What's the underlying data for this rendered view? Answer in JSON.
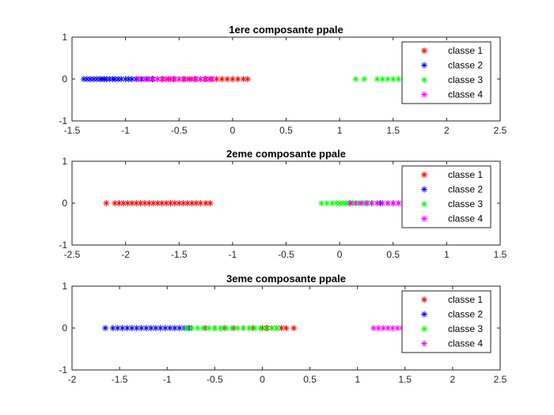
{
  "chart_data": [
    {
      "type": "scatter",
      "title": "1ere composante ppale",
      "xlim": [
        -1.5,
        2.5
      ],
      "ylim": [
        -1,
        1
      ],
      "xticks": [
        "-1.5",
        "-1",
        "-0.5",
        "0",
        "0.5",
        "1",
        "1.5",
        "2",
        "2.5"
      ],
      "yticks": [
        "1",
        "0",
        "-1"
      ],
      "legend_position": "top-right",
      "series": [
        {
          "name": "classe 1",
          "color": "#ff0000",
          "marker": "asterisk",
          "x": [
            -0.9,
            -0.85,
            -0.8,
            -0.75,
            -0.7,
            -0.65,
            -0.6,
            -0.55,
            -0.5,
            -0.45,
            -0.4,
            -0.35,
            -0.3,
            -0.25,
            -0.2,
            -0.15,
            -0.1,
            -0.05,
            0.0,
            0.05,
            0.1,
            0.14
          ]
        },
        {
          "name": "classe 2",
          "color": "#0000ff",
          "marker": "asterisk",
          "x": [
            -1.39,
            -1.36,
            -1.33,
            -1.3,
            -1.27,
            -1.24,
            -1.22,
            -1.2,
            -1.18,
            -1.15,
            -1.12,
            -1.1,
            -1.07,
            -1.04,
            -1.0,
            -0.97,
            -0.94,
            -0.9,
            -0.85,
            -0.8,
            -0.75
          ]
        },
        {
          "name": "classe 3",
          "color": "#00ff00",
          "marker": "asterisk",
          "x": [
            1.15,
            1.23,
            1.35,
            1.4,
            1.45,
            1.5,
            1.55,
            1.6,
            1.65,
            1.7,
            1.75,
            1.8,
            1.85,
            1.9,
            1.95,
            2.0,
            2.05
          ]
        },
        {
          "name": "classe 4",
          "color": "#ff00ff",
          "marker": "asterisk",
          "x": [
            -0.88,
            -0.82,
            -0.78,
            -0.74,
            -0.7,
            -0.66,
            -0.62,
            -0.58,
            -0.54,
            -0.5,
            -0.46,
            -0.42,
            -0.38,
            -0.34,
            -0.3,
            -0.26,
            -0.22,
            -0.19
          ]
        }
      ]
    },
    {
      "type": "scatter",
      "title": "2eme composante ppale",
      "xlim": [
        -2.5,
        1.5
      ],
      "ylim": [
        -1,
        1
      ],
      "xticks": [
        "-2.5",
        "-2",
        "-1.5",
        "-1",
        "-0.5",
        "0",
        "0.5",
        "1",
        "1.5"
      ],
      "yticks": [
        "1",
        "0",
        "-1"
      ],
      "legend_position": "top-right",
      "series": [
        {
          "name": "classe 1",
          "color": "#ff0000",
          "marker": "asterisk",
          "x": [
            -2.18,
            -2.1,
            -2.06,
            -2.02,
            -1.98,
            -1.94,
            -1.9,
            -1.86,
            -1.82,
            -1.78,
            -1.74,
            -1.7,
            -1.66,
            -1.62,
            -1.58,
            -1.54,
            -1.5,
            -1.46,
            -1.42,
            -1.38,
            -1.34,
            -1.3,
            -1.25,
            -1.21
          ]
        },
        {
          "name": "classe 2",
          "color": "#0000ff",
          "marker": "asterisk",
          "x": [
            0.3,
            0.38,
            0.45,
            0.5,
            0.55,
            0.6,
            0.65,
            0.7,
            0.75,
            0.8,
            0.85,
            0.9
          ]
        },
        {
          "name": "classe 3",
          "color": "#00ff00",
          "marker": "asterisk",
          "x": [
            -0.17,
            -0.12,
            -0.07,
            -0.03,
            0.0,
            0.03,
            0.06,
            0.09,
            0.12,
            0.15,
            0.18,
            0.22,
            0.26,
            0.3,
            0.35,
            0.4
          ]
        },
        {
          "name": "classe 4",
          "color": "#ff00ff",
          "marker": "asterisk",
          "x": [
            0.1,
            0.15,
            0.2,
            0.25,
            0.3,
            0.35,
            0.4,
            0.45,
            0.5,
            0.55,
            0.6,
            0.65,
            0.7,
            0.75
          ]
        }
      ]
    },
    {
      "type": "scatter",
      "title": "3eme composante ppale",
      "xlim": [
        -2,
        2.5
      ],
      "ylim": [
        -1,
        1
      ],
      "xticks": [
        "-2",
        "-1.5",
        "-1",
        "-0.5",
        "0",
        "0.5",
        "1",
        "1.5",
        "2",
        "2.5"
      ],
      "yticks": [
        "1",
        "0",
        "-1"
      ],
      "legend_position": "top-right",
      "series": [
        {
          "name": "classe 1",
          "color": "#ff0000",
          "marker": "asterisk",
          "x": [
            -0.6,
            -0.5,
            -0.4,
            -0.3,
            -0.2,
            -0.1,
            0.0,
            0.05,
            0.1,
            0.15,
            0.2,
            0.25,
            0.33
          ]
        },
        {
          "name": "classe 2",
          "color": "#0000ff",
          "marker": "asterisk",
          "x": [
            -1.65,
            -1.57,
            -1.52,
            -1.47,
            -1.42,
            -1.37,
            -1.32,
            -1.27,
            -1.22,
            -1.17,
            -1.12,
            -1.07,
            -1.02,
            -0.97,
            -0.92,
            -0.87,
            -0.82,
            -0.77
          ]
        },
        {
          "name": "classe 3",
          "color": "#00ff00",
          "marker": "asterisk",
          "x": [
            -0.8,
            -0.74,
            -0.68,
            -0.62,
            -0.56,
            -0.5,
            -0.44,
            -0.38,
            -0.32,
            -0.26,
            -0.2,
            -0.14,
            -0.08,
            -0.02,
            0.04,
            0.1,
            0.15
          ]
        },
        {
          "name": "classe 4",
          "color": "#ff00ff",
          "marker": "asterisk",
          "x": [
            1.17,
            1.22,
            1.27,
            1.32,
            1.37,
            1.42,
            1.47,
            1.52,
            1.57,
            1.62,
            1.67,
            1.72,
            1.77,
            1.82
          ]
        }
      ]
    }
  ]
}
